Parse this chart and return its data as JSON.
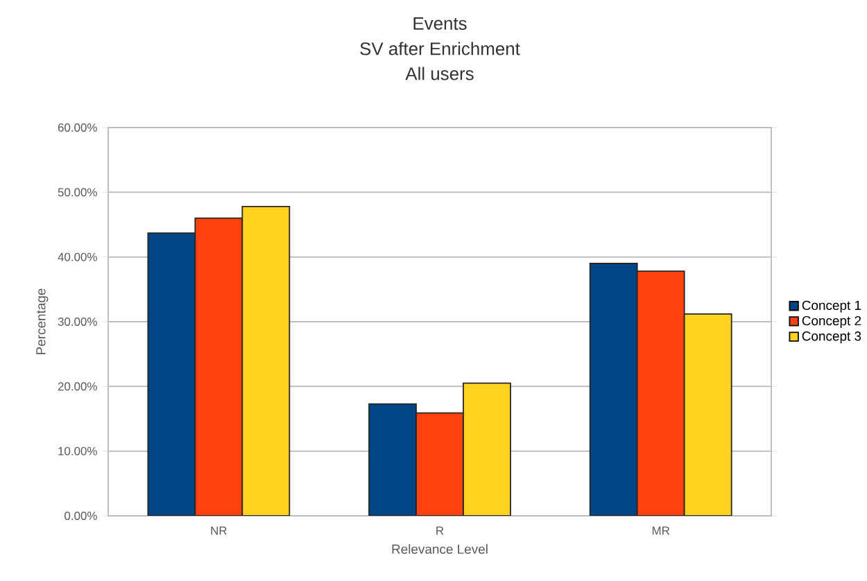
{
  "chart_data": {
    "type": "bar",
    "title": "Events",
    "subtitle": "SV after Enrichment",
    "annotations": [
      "All users"
    ],
    "xlabel": "Relevance Level",
    "ylabel": "Percentage",
    "categories": [
      "NR",
      "R",
      "MR"
    ],
    "series": [
      {
        "name": "Concept 1",
        "color": "#004586",
        "values": [
          43.7,
          17.3,
          39.0
        ]
      },
      {
        "name": "Concept 2",
        "color": "#ff420e",
        "values": [
          46.0,
          15.9,
          37.8
        ]
      },
      {
        "name": "Concept 3",
        "color": "#ffd320",
        "values": [
          47.8,
          20.5,
          31.2
        ]
      }
    ],
    "ylim": [
      0,
      60
    ],
    "yticks": [
      {
        "value": 0,
        "label": "0.00%"
      },
      {
        "value": 10,
        "label": "10.00%"
      },
      {
        "value": 20,
        "label": "20.00%"
      },
      {
        "value": 30,
        "label": "30.00%"
      },
      {
        "value": 40,
        "label": "40.00%"
      },
      {
        "value": 50,
        "label": "50.00%"
      },
      {
        "value": 60,
        "label": "60.00%"
      }
    ],
    "grid": "y",
    "legend": "right"
  }
}
